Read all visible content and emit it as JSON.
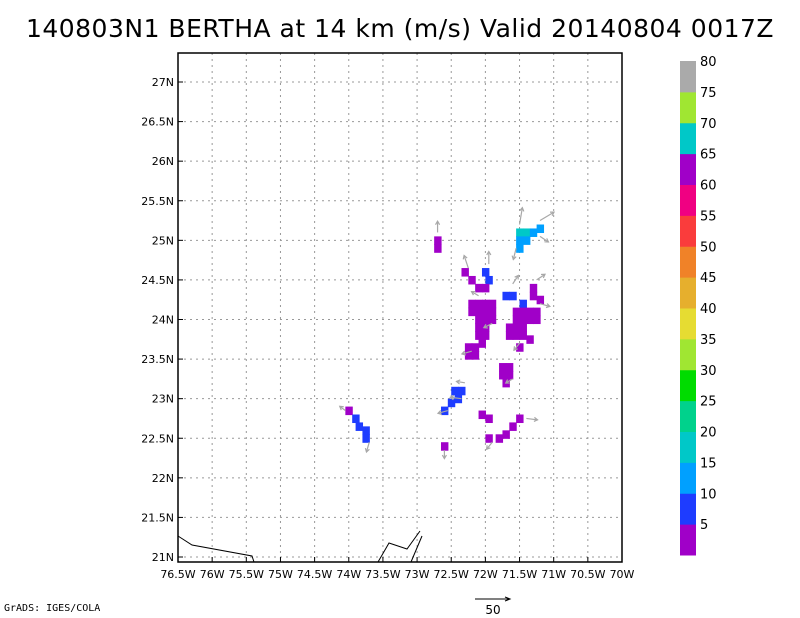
{
  "title": "140803N1 BERTHA at 14 km (m/s) Valid 20140804 0017Z",
  "credit": "GrADS: IGES/COLA",
  "vector_scale_label": "50",
  "chart_data": {
    "type": "heatmap",
    "title": "140803N1 BERTHA at 14 km (m/s) Valid 20140804 0017Z",
    "xlim": [
      -76.5,
      -70.0
    ],
    "ylim": [
      21.0,
      27.0
    ],
    "x_ticks": [
      -76.5,
      -76,
      -75.5,
      -75,
      -74.5,
      -74,
      -73.5,
      -73,
      -72.5,
      -72,
      -71.5,
      -71,
      -70.5,
      -70
    ],
    "x_tick_labels": [
      "76.5W",
      "76W",
      "75.5W",
      "75W",
      "74.5W",
      "74W",
      "73.5W",
      "73W",
      "72.5W",
      "72W",
      "71.5W",
      "71W",
      "70.5W",
      "70W"
    ],
    "y_ticks": [
      21,
      21.5,
      22,
      22.5,
      23,
      23.5,
      24,
      24.5,
      25,
      25.5,
      26,
      26.5,
      27
    ],
    "y_tick_labels": [
      "21N",
      "21.5N",
      "22N",
      "22.5N",
      "23N",
      "23.5N",
      "24N",
      "24.5N",
      "25N",
      "25.5N",
      "26N",
      "26.5N",
      "27N"
    ],
    "grid": true,
    "colorbar": {
      "labels": [
        "5",
        "10",
        "15",
        "20",
        "25",
        "30",
        "35",
        "40",
        "45",
        "50",
        "55",
        "60",
        "65",
        "70",
        "75",
        "80"
      ],
      "colors": [
        "#a000c8",
        "#1e3cff",
        "#00a0ff",
        "#00c8c8",
        "#00d28c",
        "#00dc00",
        "#a0e632",
        "#e6dc32",
        "#e6af2d",
        "#f08228",
        "#fa3c3c",
        "#f00082",
        "#a000c8",
        "#00c8c8",
        "#a0e632",
        "#aaaaaa"
      ]
    },
    "cells": [
      {
        "lon": -72.7,
        "lat": 25.0,
        "v": 5
      },
      {
        "lon": -72.7,
        "lat": 24.9,
        "v": 5
      },
      {
        "lon": -71.5,
        "lat": 25.1,
        "v": 20
      },
      {
        "lon": -71.4,
        "lat": 25.1,
        "v": 20
      },
      {
        "lon": -71.3,
        "lat": 25.1,
        "v": 15
      },
      {
        "lon": -71.2,
        "lat": 25.15,
        "v": 15
      },
      {
        "lon": -71.5,
        "lat": 25.0,
        "v": 15
      },
      {
        "lon": -71.4,
        "lat": 25.0,
        "v": 15
      },
      {
        "lon": -71.5,
        "lat": 24.9,
        "v": 15
      },
      {
        "lon": -72.3,
        "lat": 24.6,
        "v": 5
      },
      {
        "lon": -72.2,
        "lat": 24.5,
        "v": 5
      },
      {
        "lon": -72.0,
        "lat": 24.6,
        "v": 10
      },
      {
        "lon": -71.95,
        "lat": 24.5,
        "v": 10
      },
      {
        "lon": -71.7,
        "lat": 24.3,
        "v": 10
      },
      {
        "lon": -71.6,
        "lat": 24.3,
        "v": 10
      },
      {
        "lon": -71.45,
        "lat": 24.2,
        "v": 10
      },
      {
        "lon": -72.1,
        "lat": 24.4,
        "v": 5
      },
      {
        "lon": -72.0,
        "lat": 24.4,
        "v": 5
      },
      {
        "lon": -72.2,
        "lat": 24.2,
        "v": 5
      },
      {
        "lon": -72.1,
        "lat": 24.2,
        "v": 5
      },
      {
        "lon": -72.0,
        "lat": 24.2,
        "v": 5
      },
      {
        "lon": -71.9,
        "lat": 24.2,
        "v": 5
      },
      {
        "lon": -72.2,
        "lat": 24.1,
        "v": 5
      },
      {
        "lon": -72.1,
        "lat": 24.1,
        "v": 5
      },
      {
        "lon": -72.0,
        "lat": 24.1,
        "v": 5
      },
      {
        "lon": -71.9,
        "lat": 24.1,
        "v": 5
      },
      {
        "lon": -72.1,
        "lat": 24.0,
        "v": 5
      },
      {
        "lon": -72.0,
        "lat": 24.0,
        "v": 5
      },
      {
        "lon": -71.9,
        "lat": 24.0,
        "v": 5
      },
      {
        "lon": -72.1,
        "lat": 23.9,
        "v": 5
      },
      {
        "lon": -72.0,
        "lat": 23.9,
        "v": 5
      },
      {
        "lon": -72.1,
        "lat": 23.8,
        "v": 5
      },
      {
        "lon": -72.0,
        "lat": 23.8,
        "v": 5
      },
      {
        "lon": -72.25,
        "lat": 23.65,
        "v": 5
      },
      {
        "lon": -72.15,
        "lat": 23.65,
        "v": 5
      },
      {
        "lon": -72.05,
        "lat": 23.7,
        "v": 5
      },
      {
        "lon": -72.25,
        "lat": 23.55,
        "v": 5
      },
      {
        "lon": -72.15,
        "lat": 23.55,
        "v": 5
      },
      {
        "lon": -71.3,
        "lat": 24.4,
        "v": 5
      },
      {
        "lon": -71.3,
        "lat": 24.3,
        "v": 5
      },
      {
        "lon": -71.2,
        "lat": 24.25,
        "v": 5
      },
      {
        "lon": -71.55,
        "lat": 24.1,
        "v": 5
      },
      {
        "lon": -71.45,
        "lat": 24.1,
        "v": 5
      },
      {
        "lon": -71.35,
        "lat": 24.1,
        "v": 5
      },
      {
        "lon": -71.25,
        "lat": 24.1,
        "v": 5
      },
      {
        "lon": -71.55,
        "lat": 24.0,
        "v": 5
      },
      {
        "lon": -71.45,
        "lat": 24.0,
        "v": 5
      },
      {
        "lon": -71.35,
        "lat": 24.0,
        "v": 5
      },
      {
        "lon": -71.25,
        "lat": 24.0,
        "v": 5
      },
      {
        "lon": -71.65,
        "lat": 23.9,
        "v": 5
      },
      {
        "lon": -71.55,
        "lat": 23.9,
        "v": 5
      },
      {
        "lon": -71.45,
        "lat": 23.9,
        "v": 5
      },
      {
        "lon": -71.65,
        "lat": 23.8,
        "v": 5
      },
      {
        "lon": -71.55,
        "lat": 23.8,
        "v": 5
      },
      {
        "lon": -71.45,
        "lat": 23.8,
        "v": 5
      },
      {
        "lon": -71.35,
        "lat": 23.75,
        "v": 5
      },
      {
        "lon": -71.5,
        "lat": 23.65,
        "v": 5
      },
      {
        "lon": -71.75,
        "lat": 23.4,
        "v": 5
      },
      {
        "lon": -71.65,
        "lat": 23.4,
        "v": 5
      },
      {
        "lon": -71.75,
        "lat": 23.3,
        "v": 5
      },
      {
        "lon": -71.65,
        "lat": 23.3,
        "v": 5
      },
      {
        "lon": -71.7,
        "lat": 23.2,
        "v": 5
      },
      {
        "lon": -72.45,
        "lat": 23.1,
        "v": 10
      },
      {
        "lon": -72.35,
        "lat": 23.1,
        "v": 10
      },
      {
        "lon": -72.4,
        "lat": 23.0,
        "v": 10
      },
      {
        "lon": -72.5,
        "lat": 22.95,
        "v": 10
      },
      {
        "lon": -72.6,
        "lat": 22.85,
        "v": 10
      },
      {
        "lon": -72.05,
        "lat": 22.8,
        "v": 5
      },
      {
        "lon": -71.95,
        "lat": 22.75,
        "v": 5
      },
      {
        "lon": -71.5,
        "lat": 22.75,
        "v": 5
      },
      {
        "lon": -71.6,
        "lat": 22.65,
        "v": 5
      },
      {
        "lon": -71.7,
        "lat": 22.55,
        "v": 5
      },
      {
        "lon": -71.8,
        "lat": 22.5,
        "v": 5
      },
      {
        "lon": -71.95,
        "lat": 22.5,
        "v": 5
      },
      {
        "lon": -72.6,
        "lat": 22.4,
        "v": 5
      },
      {
        "lon": -74.0,
        "lat": 22.85,
        "v": 5
      },
      {
        "lon": -73.9,
        "lat": 22.75,
        "v": 10
      },
      {
        "lon": -73.85,
        "lat": 22.65,
        "v": 10
      },
      {
        "lon": -73.75,
        "lat": 22.6,
        "v": 10
      },
      {
        "lon": -73.75,
        "lat": 22.5,
        "v": 10
      }
    ],
    "vectors": [
      {
        "lon": -72.7,
        "lat": 25.1,
        "u": 0,
        "v": 8
      },
      {
        "lon": -71.5,
        "lat": 25.2,
        "u": 2,
        "v": 12
      },
      {
        "lon": -71.2,
        "lat": 25.25,
        "u": 10,
        "v": 6
      },
      {
        "lon": -71.2,
        "lat": 25.05,
        "u": 6,
        "v": -4
      },
      {
        "lon": -71.55,
        "lat": 24.9,
        "u": -2,
        "v": -8
      },
      {
        "lon": -72.25,
        "lat": 24.65,
        "u": -3,
        "v": 9
      },
      {
        "lon": -71.95,
        "lat": 24.7,
        "u": 0,
        "v": 9
      },
      {
        "lon": -71.6,
        "lat": 24.45,
        "u": 4,
        "v": 6
      },
      {
        "lon": -71.25,
        "lat": 24.5,
        "u": 6,
        "v": 4
      },
      {
        "lon": -71.2,
        "lat": 24.2,
        "u": 7,
        "v": -2
      },
      {
        "lon": -72.1,
        "lat": 24.3,
        "u": -5,
        "v": 3
      },
      {
        "lon": -71.9,
        "lat": 23.95,
        "u": -6,
        "v": -3
      },
      {
        "lon": -72.2,
        "lat": 23.6,
        "u": -7,
        "v": -2
      },
      {
        "lon": -71.5,
        "lat": 23.7,
        "u": -4,
        "v": -5
      },
      {
        "lon": -71.6,
        "lat": 23.25,
        "u": -5,
        "v": -3
      },
      {
        "lon": -72.3,
        "lat": 23.2,
        "u": -6,
        "v": 1
      },
      {
        "lon": -72.55,
        "lat": 22.85,
        "u": -7,
        "v": -2
      },
      {
        "lon": -72.35,
        "lat": 23.0,
        "u": -8,
        "v": 1
      },
      {
        "lon": -71.4,
        "lat": 22.75,
        "u": 8,
        "v": -1
      },
      {
        "lon": -71.9,
        "lat": 22.45,
        "u": -4,
        "v": -5
      },
      {
        "lon": -74.05,
        "lat": 22.85,
        "u": -4,
        "v": 3
      },
      {
        "lon": -73.7,
        "lat": 22.45,
        "u": -2,
        "v": -7
      },
      {
        "lon": -72.6,
        "lat": 22.35,
        "u": 0,
        "v": -6
      }
    ]
  }
}
